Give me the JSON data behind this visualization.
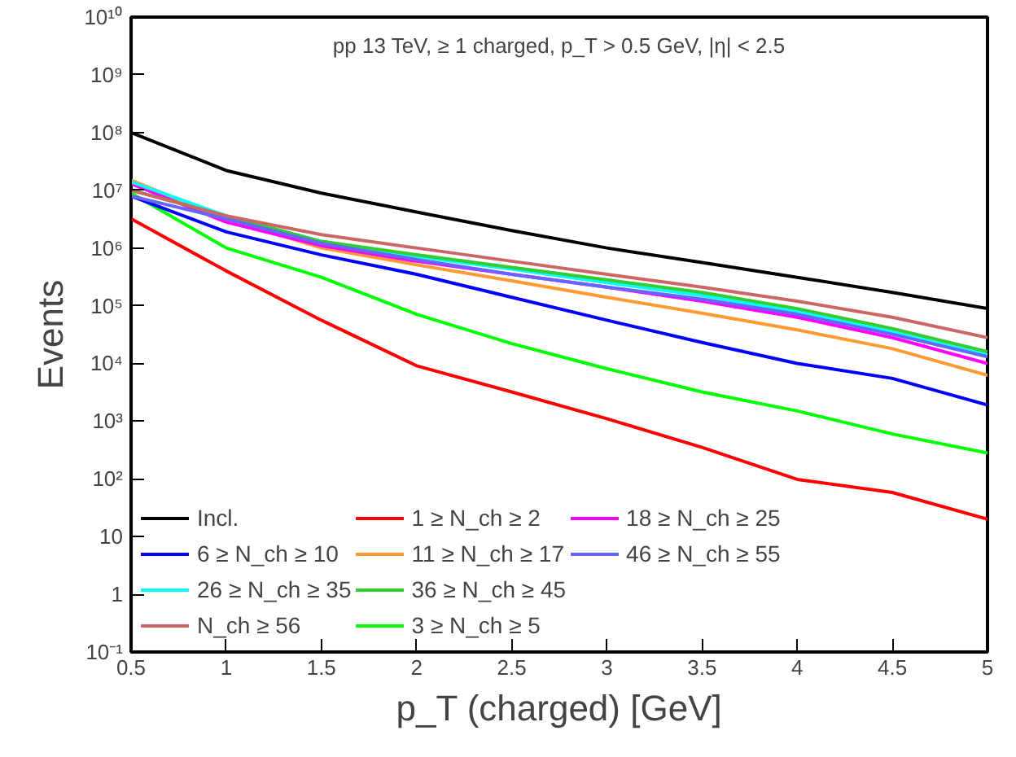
{
  "chart_data": {
    "type": "line",
    "title": "pp 13 TeV, ≥ 1 charged, p_T > 0.5 GeV, |η| < 2.5",
    "xlabel": "p_T (charged) [GeV]",
    "ylabel": "Events",
    "x": [
      0.5,
      1,
      1.5,
      2,
      2.5,
      3,
      3.5,
      4,
      4.5,
      5
    ],
    "xlim": [
      0.5,
      5
    ],
    "xticks": [
      0.5,
      1,
      1.5,
      2,
      2.5,
      3,
      3.5,
      4,
      4.5,
      5
    ],
    "ylim": [
      0.1,
      10000000000.0
    ],
    "yticks": [
      {
        "value": 0.1,
        "label": "10⁻¹"
      },
      1,
      10,
      {
        "value": 100,
        "label": "10²"
      },
      {
        "value": 1000,
        "label": "10³"
      },
      {
        "value": 10000,
        "label": "10⁴"
      },
      {
        "value": 100000,
        "label": "10⁵"
      },
      {
        "value": 1000000,
        "label": "10⁶"
      },
      {
        "value": 10000000,
        "label": "10⁷"
      },
      {
        "value": 100000000,
        "label": "10⁸"
      },
      {
        "value": 1000000000,
        "label": "10⁹"
      },
      {
        "value": 10000000000,
        "label": "10¹⁰"
      }
    ],
    "log": "y",
    "grid": false,
    "legend": "bottom left",
    "marker": "none",
    "line_style": "solid",
    "series": [
      {
        "name": "Incl.",
        "color": "#000000",
        "values": [
          100000000.0,
          22000000.0,
          8900000.0,
          4200000.0,
          2000000.0,
          1000000.0,
          560000.0,
          310000.0,
          170000.0,
          89000.0
        ]
      },
      {
        "name": "1 ≥ N_ch ≥ 2",
        "color": "#ff0000",
        "values": [
          3200000.0,
          400000.0,
          56000.0,
          9100,
          3200,
          1100,
          350,
          98,
          58,
          20
        ]
      },
      {
        "name": "3 ≥ N_ch ≥ 5",
        "color": "#00ff00",
        "values": [
          8900000.0,
          1000000.0,
          310000.0,
          71000.0,
          22000.0,
          8100,
          3200,
          1500,
          600,
          280
        ]
      },
      {
        "name": "6 ≥ N_ch ≥ 10",
        "color": "#0000ff",
        "values": [
          7900000.0,
          1900000.0,
          760000.0,
          350000.0,
          140000.0,
          56000.0,
          23000.0,
          10000.0,
          5500,
          1900
        ]
      },
      {
        "name": "11 ≥ N_ch ≥ 17",
        "color": "#ff9933",
        "values": [
          15000000.0,
          3200000.0,
          1000000.0,
          510000.0,
          270000.0,
          140000.0,
          74000.0,
          38000.0,
          18000.0,
          6200
        ]
      },
      {
        "name": "18 ≥ N_ch ≥ 25",
        "color": "#ff00ff",
        "values": [
          13000000.0,
          2800000.0,
          1100000.0,
          590000.0,
          350000.0,
          210000.0,
          120000.0,
          63000.0,
          28000.0,
          10000.0
        ]
      },
      {
        "name": "26 ≥ N_ch ≥ 35",
        "color": "#00ffff",
        "values": [
          14000000.0,
          3600000.0,
          1300000.0,
          710000.0,
          430000.0,
          250000.0,
          150000.0,
          79000.0,
          35000.0,
          14000.0
        ]
      },
      {
        "name": "36 ≥ N_ch ≥ 45",
        "color": "#33cc33",
        "values": [
          10000000.0,
          3600000.0,
          1300000.0,
          760000.0,
          460000.0,
          280000.0,
          170000.0,
          89000.0,
          40000.0,
          16000.0
        ]
      },
      {
        "name": "46 ≥ N_ch ≥ 55",
        "color": "#6666ff",
        "values": [
          7900000.0,
          3200000.0,
          1200000.0,
          630000.0,
          350000.0,
          210000.0,
          130000.0,
          71000.0,
          32000.0,
          13000.0
        ]
      },
      {
        "name": "N_ch ≥ 56",
        "color": "#cc6666",
        "values": [
          10000000.0,
          3600000.0,
          1700000.0,
          1000000.0,
          590000.0,
          350000.0,
          210000.0,
          120000.0,
          63000.0,
          28000.0
        ]
      }
    ]
  }
}
